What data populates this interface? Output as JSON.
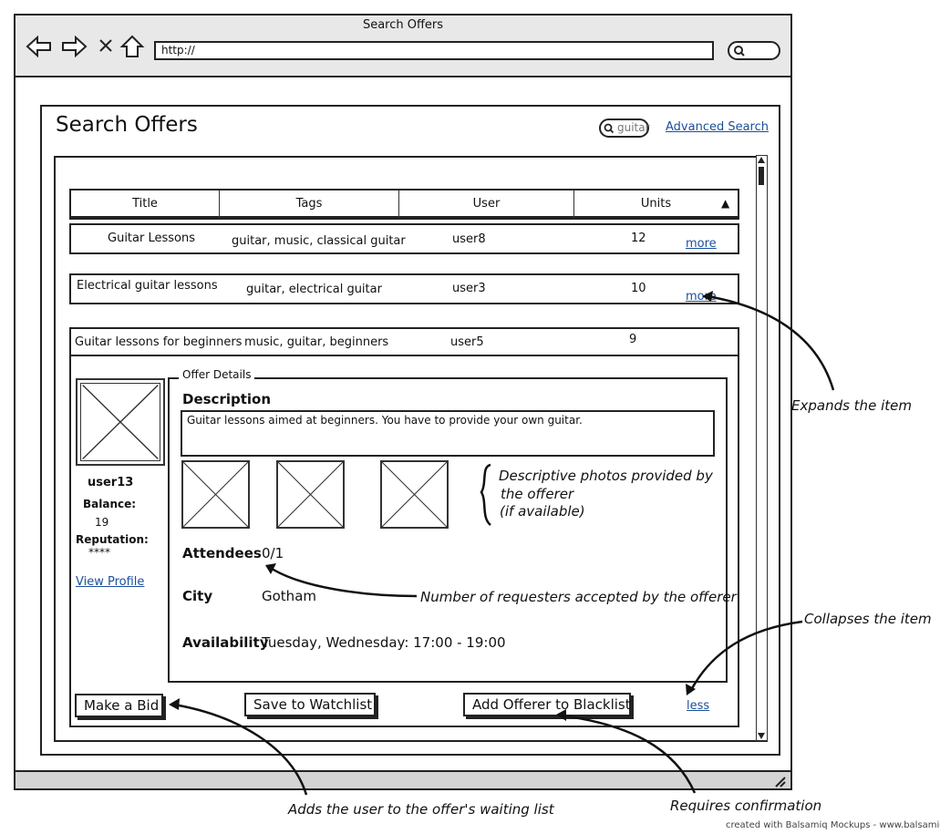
{
  "window": {
    "title": "Search Offers",
    "url": "http://"
  },
  "page": {
    "title": "Search Offers",
    "search_value": "guitar",
    "advanced_search": "Advanced Search"
  },
  "table": {
    "headers": [
      "Title",
      "Tags",
      "User",
      "Units"
    ],
    "sort_indicator": "▲",
    "rows": [
      {
        "title": "Guitar Lessons",
        "tags": "guitar, music, classical guitar",
        "user": "user8",
        "units": "12",
        "action": "more"
      },
      {
        "title": "Electrical guitar lessons",
        "tags": "guitar, electrical guitar",
        "user": "user3",
        "units": "10",
        "action": "more"
      },
      {
        "title": "Guitar lessons for beginners",
        "tags": "music, guitar, beginners",
        "user": "user5",
        "units": "9"
      }
    ]
  },
  "details": {
    "legend": "Offer Details",
    "description_label": "Description",
    "description": "Guitar lessons aimed at beginners. You have to provide your own guitar.",
    "attendees_label": "Attendees",
    "attendees": "0/1",
    "city_label": "City",
    "city": "Gotham",
    "availability_label": "Availability",
    "availability": "Tuesday, Wednesday: 17:00 - 19:00",
    "less": "less"
  },
  "offerer": {
    "username": "user13",
    "balance_label": "Balance:",
    "balance": "19",
    "reputation_label": "Reputation:",
    "reputation": "****",
    "view_profile": "View Profile"
  },
  "buttons": {
    "make_bid": "Make a Bid",
    "save_watchlist": "Save to Watchlist",
    "blacklist": "Add Offerer to Blacklist"
  },
  "annotations": {
    "expands": "Expands the item",
    "photos_line1": "Descriptive photos provided by",
    "photos_line2": "the offerer",
    "photos_line3": "(if available)",
    "requesters": "Number of requesters accepted by the offerer",
    "collapses": "Collapses the item",
    "waiting_list": "Adds the user to the offer's waiting list",
    "confirmation": "Requires confirmation"
  },
  "footer_credit": "created with Balsamiq Mockups - www.balsamiq.com"
}
